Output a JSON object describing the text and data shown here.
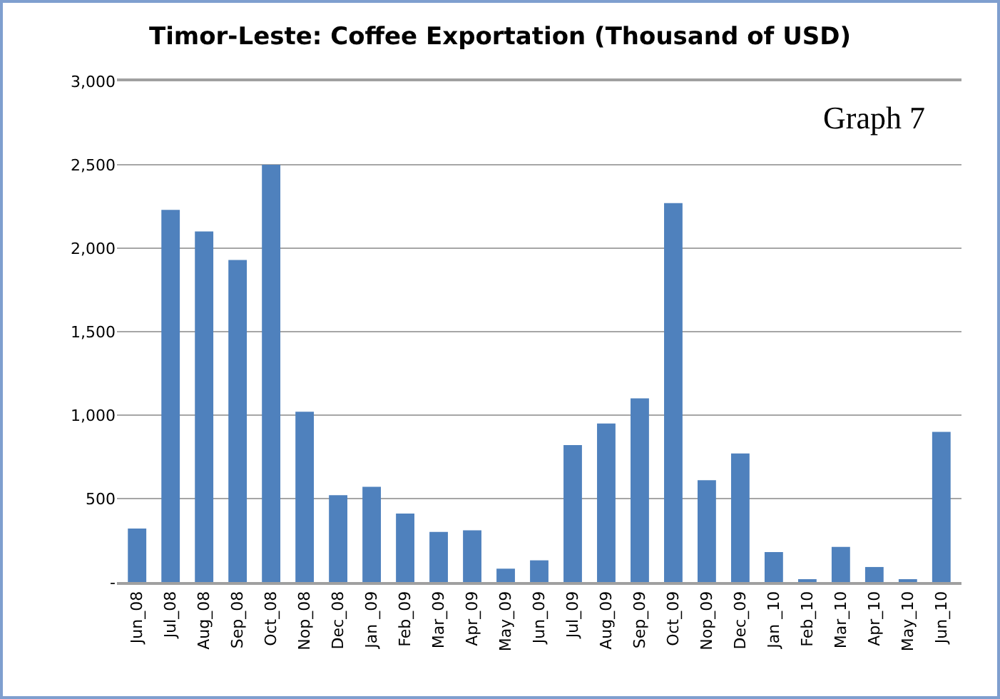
{
  "chart_data": {
    "type": "bar",
    "title": "Timor-Leste: Coffee Exportation (Thousand of USD)",
    "categories": [
      "Jun_08",
      "Jul_08",
      "Aug_08",
      "Sep_08",
      "Oct_08",
      "Nop_08",
      "Dec_08",
      "Jan _09",
      "Feb_09",
      "Mar_09",
      "Apr_09",
      "May_09",
      "Jun_09",
      "Jul_09",
      "Aug_09",
      "Sep_09",
      "Oct_09",
      "Nop_09",
      "Dec_09",
      "Jan _10",
      "Feb_10",
      "Mar_10",
      "Apr_10",
      "May_10",
      "Jun_10"
    ],
    "values": [
      320,
      2230,
      2100,
      1930,
      2500,
      1020,
      520,
      570,
      410,
      300,
      310,
      80,
      130,
      820,
      950,
      1100,
      2270,
      610,
      770,
      180,
      10,
      210,
      90,
      10,
      900
    ],
    "color": "#4f81bd",
    "ylim": [
      0,
      3000
    ],
    "yticks": [
      {
        "value": 0,
        "label": "-"
      },
      {
        "value": 500,
        "label": "500"
      },
      {
        "value": 1000,
        "label": "1,000"
      },
      {
        "value": 1500,
        "label": "1,500"
      },
      {
        "value": 2000,
        "label": "2,000"
      },
      {
        "value": 2500,
        "label": "2,500"
      },
      {
        "value": 3000,
        "label": "3,000"
      }
    ],
    "grid": "y",
    "annotations": [
      "Graph 7"
    ]
  }
}
